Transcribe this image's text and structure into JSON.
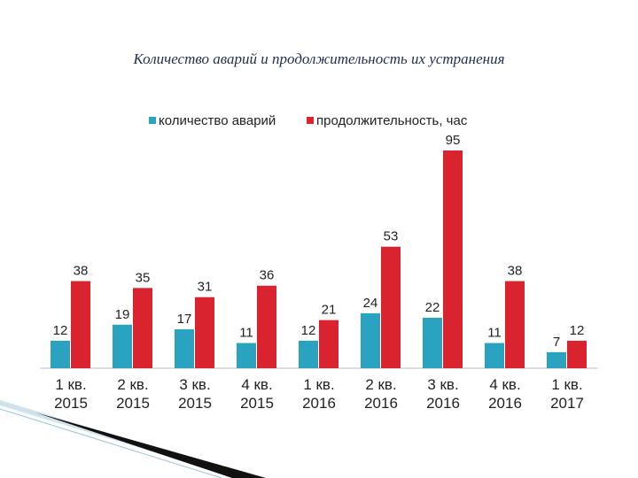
{
  "chart_data": {
    "type": "bar",
    "title": "Количество аварий и продолжительность их устранения",
    "categories": [
      "1 кв. 2015",
      "2 кв. 2015",
      "3 кв. 2015",
      "4 кв. 2015",
      "1 кв. 2016",
      "2 кв. 2016",
      "3 кв. 2016",
      "4 кв. 2016",
      "1 кв. 2017"
    ],
    "series": [
      {
        "name": "количество аварий",
        "color": "#2aa3c0",
        "values": [
          12,
          19,
          17,
          11,
          12,
          24,
          22,
          11,
          7
        ]
      },
      {
        "name": "продолжительность, час",
        "color": "#d9232e",
        "values": [
          38,
          35,
          31,
          36,
          21,
          53,
          95,
          38,
          12
        ]
      }
    ],
    "legend": "top"
  }
}
